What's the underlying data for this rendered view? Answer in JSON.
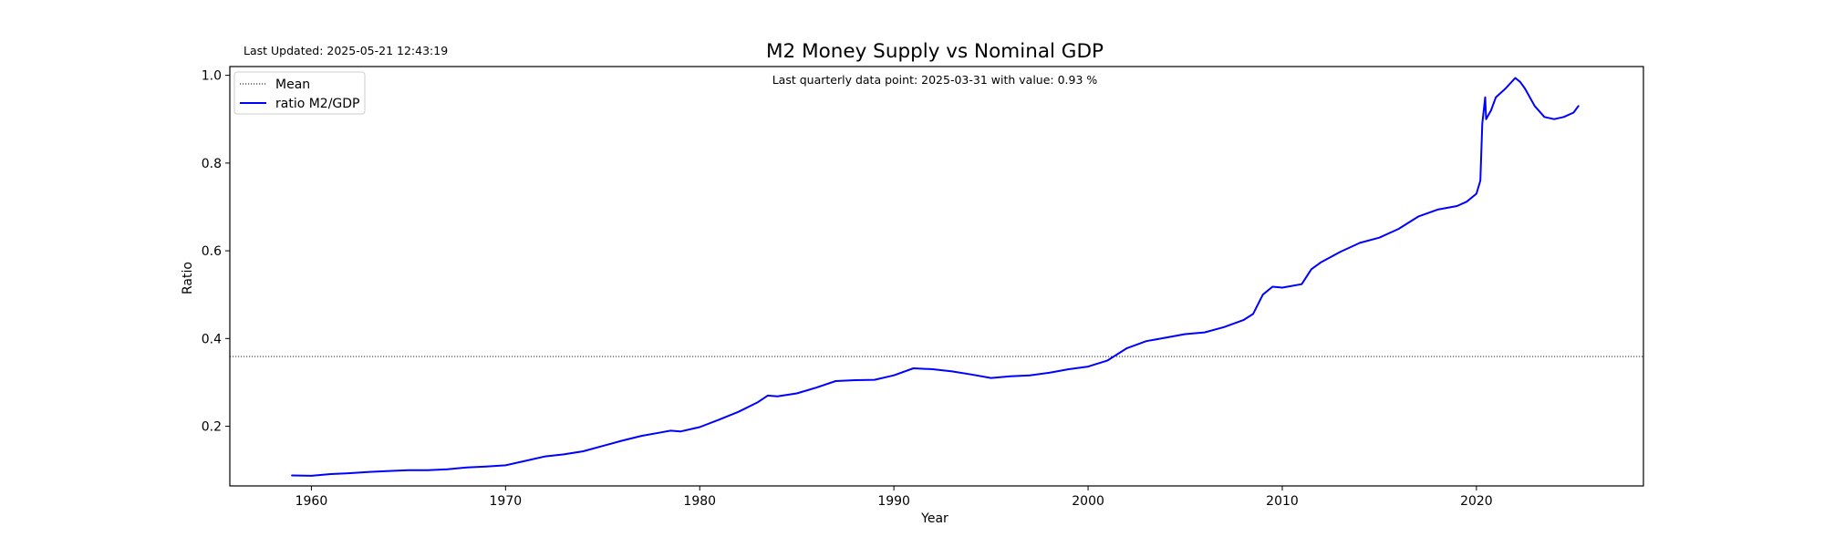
{
  "chart_data": {
    "type": "line",
    "title": "M2 Money Supply vs Nominal GDP",
    "last_updated": "Last Updated: 2025-05-21 12:43:19",
    "annotation": "Last quarterly data point: 2025-03-31 with value: 0.93 %",
    "xlabel": "Year",
    "ylabel": "Ratio",
    "xlim": [
      1955.8,
      2028.6
    ],
    "ylim": [
      0.064,
      1.02
    ],
    "xticks": [
      1960,
      1970,
      1980,
      1990,
      2000,
      2010,
      2020
    ],
    "xtick_labels": [
      "1960",
      "1970",
      "1980",
      "1990",
      "2000",
      "2010",
      "2020"
    ],
    "yticks": [
      0.2,
      0.4,
      0.6,
      0.8,
      1.0
    ],
    "ytick_labels": [
      "0.2",
      "0.4",
      "0.6",
      "0.8",
      "1.0"
    ],
    "legend_position": "top-left",
    "grid": false,
    "mean": {
      "name": "Mean",
      "value": 0.359,
      "color": "#000000",
      "style": "dotted"
    },
    "series": [
      {
        "name": "ratio M2/GDP",
        "color": "#0000ff",
        "x": [
          1959.0,
          1960.0,
          1961.0,
          1962.0,
          1963.0,
          1964.0,
          1965.0,
          1966.0,
          1967.0,
          1968.0,
          1969.0,
          1970.0,
          1971.0,
          1972.0,
          1973.0,
          1974.0,
          1975.0,
          1976.0,
          1977.0,
          1978.0,
          1978.5,
          1979.0,
          1980.0,
          1981.0,
          1982.0,
          1983.0,
          1983.5,
          1984.0,
          1985.0,
          1986.0,
          1987.0,
          1988.0,
          1989.0,
          1990.0,
          1991.0,
          1992.0,
          1993.0,
          1994.0,
          1995.0,
          1996.0,
          1997.0,
          1998.0,
          1999.0,
          2000.0,
          2001.0,
          2002.0,
          2003.0,
          2004.0,
          2005.0,
          2006.0,
          2007.0,
          2008.0,
          2008.5,
          2009.0,
          2009.5,
          2010.0,
          2011.0,
          2011.5,
          2012.0,
          2013.0,
          2014.0,
          2015.0,
          2016.0,
          2017.0,
          2018.0,
          2019.0,
          2019.5,
          2020.0,
          2020.2,
          2020.3,
          2020.45,
          2020.5,
          2020.75,
          2021.0,
          2021.5,
          2022.0,
          2022.25,
          2022.5,
          2023.0,
          2023.5,
          2024.0,
          2024.5,
          2025.0,
          2025.25
        ],
        "values": [
          0.088,
          0.087,
          0.091,
          0.093,
          0.096,
          0.098,
          0.1,
          0.1,
          0.102,
          0.106,
          0.108,
          0.111,
          0.121,
          0.131,
          0.136,
          0.143,
          0.155,
          0.167,
          0.178,
          0.186,
          0.19,
          0.188,
          0.198,
          0.215,
          0.233,
          0.255,
          0.27,
          0.268,
          0.275,
          0.288,
          0.303,
          0.305,
          0.306,
          0.316,
          0.332,
          0.33,
          0.325,
          0.318,
          0.31,
          0.314,
          0.316,
          0.322,
          0.33,
          0.336,
          0.35,
          0.378,
          0.394,
          0.402,
          0.41,
          0.414,
          0.426,
          0.442,
          0.456,
          0.5,
          0.518,
          0.516,
          0.524,
          0.558,
          0.574,
          0.598,
          0.618,
          0.63,
          0.65,
          0.678,
          0.694,
          0.702,
          0.712,
          0.73,
          0.76,
          0.89,
          0.95,
          0.9,
          0.92,
          0.95,
          0.97,
          0.994,
          0.985,
          0.97,
          0.93,
          0.905,
          0.9,
          0.905,
          0.915,
          0.93
        ]
      }
    ]
  }
}
